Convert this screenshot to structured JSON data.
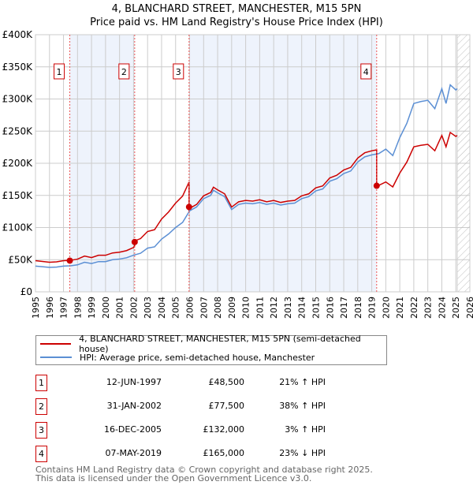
{
  "title": "4, BLANCHARD STREET, MANCHESTER, M15 5PN",
  "subtitle": "Price paid vs. HM Land Registry's House Price Index (HPI)",
  "chart_data": {
    "type": "line",
    "xlim": [
      1995,
      2026
    ],
    "ylim": [
      0,
      400000
    ],
    "yticks": [
      {
        "v": 0,
        "label": "£0"
      },
      {
        "v": 50000,
        "label": "£50K"
      },
      {
        "v": 100000,
        "label": "£100K"
      },
      {
        "v": 150000,
        "label": "£150K"
      },
      {
        "v": 200000,
        "label": "£200K"
      },
      {
        "v": 250000,
        "label": "£250K"
      },
      {
        "v": 300000,
        "label": "£300K"
      },
      {
        "v": 350000,
        "label": "£350K"
      },
      {
        "v": 400000,
        "label": "£400K"
      }
    ],
    "xticks": [
      "1995",
      "1996",
      "1997",
      "1998",
      "1999",
      "2000",
      "2001",
      "2002",
      "2003",
      "2004",
      "2005",
      "2006",
      "2007",
      "2008",
      "2009",
      "2010",
      "2011",
      "2012",
      "2013",
      "2014",
      "2015",
      "2016",
      "2017",
      "2018",
      "2019",
      "2020",
      "2021",
      "2022",
      "2023",
      "2024",
      "2025",
      "2026"
    ],
    "hpi_series": {
      "name": "HPI: Average price, semi-detached house, Manchester",
      "color": "#5b8fd4",
      "x": [
        1995,
        1996,
        1996.5,
        1997,
        1997.5,
        1998,
        1998.5,
        1999,
        1999.5,
        2000,
        2000.5,
        2001,
        2001.5,
        2002,
        2002.5,
        2003,
        2003.5,
        2004,
        2004.5,
        2005,
        2005.5,
        2006,
        2006.5,
        2007,
        2007.5,
        2007.7,
        2008,
        2008.5,
        2009,
        2009.5,
        2010,
        2010.5,
        2011,
        2011.5,
        2012,
        2012.5,
        2013,
        2013.5,
        2014,
        2014.5,
        2015,
        2015.5,
        2016,
        2016.5,
        2017,
        2017.5,
        2018,
        2018.5,
        2019,
        2019.5,
        2020,
        2020.5,
        2021,
        2021.5,
        2022,
        2022.5,
        2023,
        2023.5,
        2024,
        2024.3,
        2024.6,
        2025,
        2025.1
      ],
      "y": [
        40000,
        38000,
        38500,
        40000,
        40500,
        42000,
        46000,
        44000,
        47000,
        47000,
        50000,
        51000,
        53000,
        57000,
        60000,
        68000,
        70000,
        82000,
        90000,
        100000,
        108000,
        126000,
        132000,
        145000,
        150000,
        158000,
        154000,
        148000,
        128000,
        136000,
        138000,
        137000,
        139000,
        136000,
        138000,
        135000,
        137000,
        138000,
        145000,
        148000,
        157000,
        160000,
        172000,
        176000,
        184000,
        188000,
        202000,
        210000,
        213000,
        215000,
        222000,
        212000,
        240000,
        262000,
        293000,
        296000,
        298000,
        285000,
        316000,
        293000,
        322000,
        314000,
        316000
      ]
    },
    "price_series": {
      "name": "4, BLANCHARD STREET, MANCHESTER, M15 5PN (semi-detached house)",
      "color": "#cc0000"
    },
    "sales": [
      {
        "n": "1",
        "x": 1997.45,
        "date": "12-JUN-1997",
        "price": 48500,
        "price_label": "£48,500",
        "hpi": "21% ↑ HPI",
        "ratio": 1.21
      },
      {
        "n": "2",
        "x": 2002.08,
        "date": "31-JAN-2002",
        "price": 77500,
        "price_label": "£77,500",
        "hpi": "38% ↑ HPI",
        "ratio": 1.38
      },
      {
        "n": "3",
        "x": 2005.96,
        "date": "16-DEC-2005",
        "price": 132000,
        "price_label": "£132,000",
        "hpi": "3% ↑ HPI",
        "ratio": 1.03
      },
      {
        "n": "4",
        "x": 2019.35,
        "date": "07-MAY-2019",
        "price": 165000,
        "price_label": "£165,000",
        "hpi": "23% ↓ HPI",
        "ratio": 0.77
      }
    ],
    "forecast_start": 2025.1
  },
  "legend": {
    "price": "4, BLANCHARD STREET, MANCHESTER, M15 5PN (semi-detached house)",
    "hpi": "HPI: Average price, semi-detached house, Manchester"
  },
  "footer": [
    "Contains HM Land Registry data © Crown copyright and database right 2025.",
    "This data is licensed under the Open Government Licence v3.0."
  ]
}
